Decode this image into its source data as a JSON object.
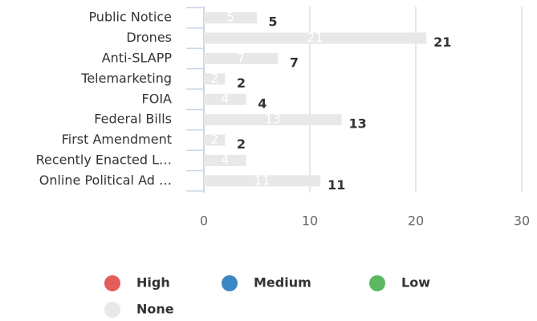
{
  "chart_data": {
    "type": "bar",
    "orientation": "horizontal",
    "stacked": true,
    "categories": [
      "Public Notice",
      "Drones",
      "Anti-SLAPP",
      "Telemarketing",
      "FOIA",
      "Federal Bills",
      "First Amendment",
      "Recently Enacted L…",
      "Online Political Ad …"
    ],
    "series": [
      {
        "name": "High",
        "color": "#e35d5d",
        "values": [
          0,
          0,
          0,
          0,
          0,
          0,
          0,
          0,
          0
        ]
      },
      {
        "name": "Medium",
        "color": "#3b86c4",
        "values": [
          0,
          0,
          0,
          0,
          0,
          0,
          0,
          0,
          0
        ]
      },
      {
        "name": "Low",
        "color": "#5cb860",
        "values": [
          0,
          0,
          0,
          0,
          0,
          0,
          0,
          0,
          0
        ]
      },
      {
        "name": "None",
        "color": "#e8e8e8",
        "values": [
          5,
          21,
          7,
          2,
          4,
          13,
          2,
          4,
          11
        ]
      }
    ],
    "total_labels": [
      "5",
      "21",
      "7",
      "2",
      "4",
      "13",
      "2",
      null,
      "11"
    ],
    "xlim": [
      0,
      30
    ],
    "xticks": [
      0,
      10,
      20,
      30
    ],
    "grid": true,
    "legend": "bottom"
  }
}
